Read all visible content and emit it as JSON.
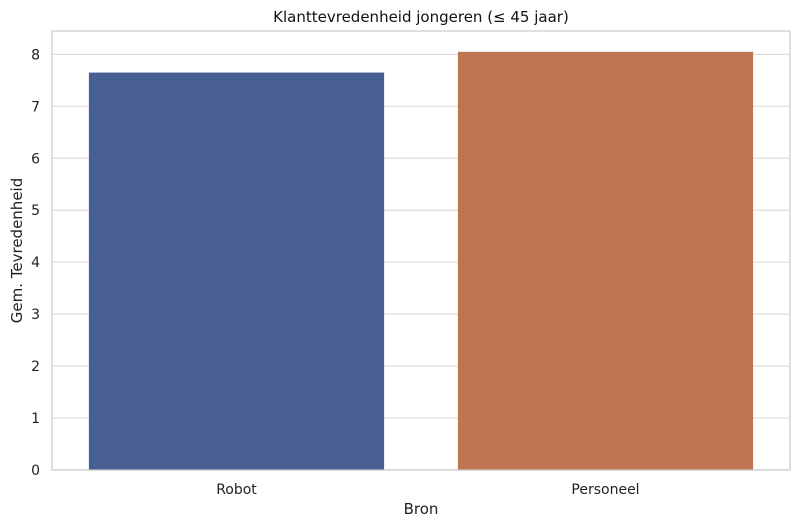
{
  "chart_data": {
    "type": "bar",
    "title": "Klanttevredenheid jongeren (≤ 45 jaar)",
    "xlabel": "Bron",
    "ylabel": "Gem. Tevredenheid",
    "categories": [
      "Robot",
      "Personeel"
    ],
    "values": [
      7.65,
      8.05
    ],
    "colors": [
      "#475f93",
      "#bf7552"
    ],
    "ylim": [
      0,
      8.45
    ],
    "yticks": [
      0,
      1,
      2,
      3,
      4,
      5,
      6,
      7,
      8
    ],
    "grid": true,
    "legend": "none"
  }
}
